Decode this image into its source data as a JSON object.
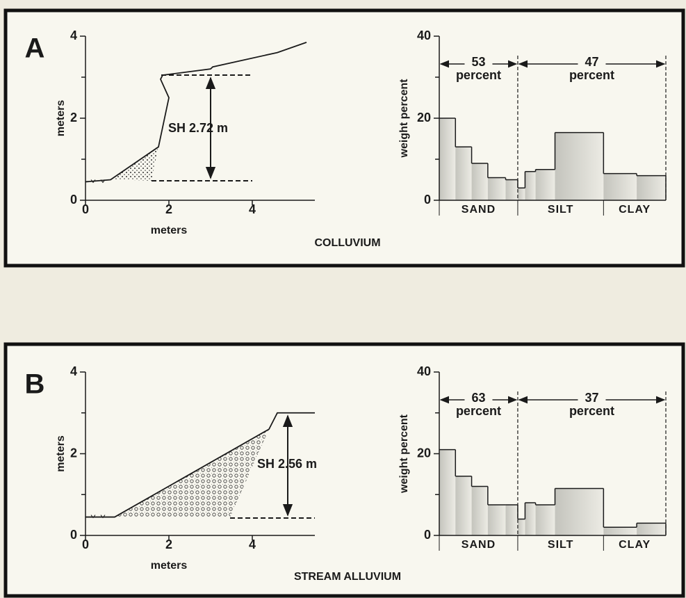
{
  "panels": [
    {
      "label": "A",
      "caption": "COLLUVIUM"
    },
    {
      "label": "B",
      "caption": "STREAM ALLUVIUM"
    }
  ],
  "chart_data": [
    {
      "type": "line",
      "y_label": "meters",
      "x_label": "meters",
      "xlim": [
        0,
        5.5
      ],
      "ylim": [
        0,
        4
      ],
      "xticks": [
        0,
        2,
        4
      ],
      "yticks": [
        0,
        2,
        4
      ],
      "minor_yticks": [
        1,
        3
      ],
      "x": [
        0,
        0.6,
        1.75,
        2.0,
        1.8,
        1.85,
        3.0,
        3.05,
        4.6,
        5.3
      ],
      "values": [
        0.45,
        0.5,
        1.3,
        2.5,
        2.95,
        3.05,
        3.2,
        3.25,
        3.6,
        3.85
      ],
      "color": "#1a1a1a",
      "annotation": "SH 2.72 m"
    },
    {
      "type": "histogram",
      "y_label": "weight percent",
      "ylim": [
        0,
        40
      ],
      "yticks": [
        0,
        20,
        40
      ],
      "minor_yticks": [
        10,
        30
      ],
      "xlim": [
        0,
        14
      ],
      "bins": [
        0,
        1,
        2,
        3,
        4.1,
        4.85,
        5.3,
        5.95,
        7.15,
        10.15,
        12.2,
        14
      ],
      "values": [
        20,
        13,
        9,
        5.5,
        5,
        3,
        7,
        7.5,
        16.5,
        6.5,
        6
      ],
      "categories": [
        "SAND",
        "SILT",
        "CLAY"
      ],
      "shares": [
        {
          "value": 53,
          "text": "percent"
        },
        {
          "value": 47,
          "text": "percent"
        }
      ],
      "color": "#d6d6cf"
    },
    {
      "type": "line",
      "y_label": "meters",
      "x_label": "meters",
      "xlim": [
        0,
        5.5
      ],
      "ylim": [
        0,
        4
      ],
      "xticks": [
        0,
        2,
        4
      ],
      "yticks": [
        0,
        2,
        4
      ],
      "minor_yticks": [
        1,
        3
      ],
      "x": [
        0,
        0.7,
        4.4,
        4.6,
        5.5
      ],
      "values": [
        0.45,
        0.45,
        2.6,
        3.0,
        3.0
      ],
      "color": "#1a1a1a",
      "annotation": "SH 2.56 m"
    },
    {
      "type": "histogram",
      "y_label": "weight percent",
      "ylim": [
        0,
        40
      ],
      "yticks": [
        0,
        20,
        40
      ],
      "minor_yticks": [
        10,
        30
      ],
      "xlim": [
        0,
        14
      ],
      "bins": [
        0,
        1,
        2,
        3,
        4.1,
        4.85,
        5.3,
        5.95,
        7.15,
        10.15,
        12.2,
        14
      ],
      "values": [
        21,
        14.5,
        12,
        7.5,
        7.5,
        4,
        8,
        7.5,
        11.5,
        2,
        3
      ],
      "categories": [
        "SAND",
        "SILT",
        "CLAY"
      ],
      "shares": [
        {
          "value": 63,
          "text": "percent"
        },
        {
          "value": 37,
          "text": "percent"
        }
      ],
      "color": "#d6d6cf"
    }
  ]
}
